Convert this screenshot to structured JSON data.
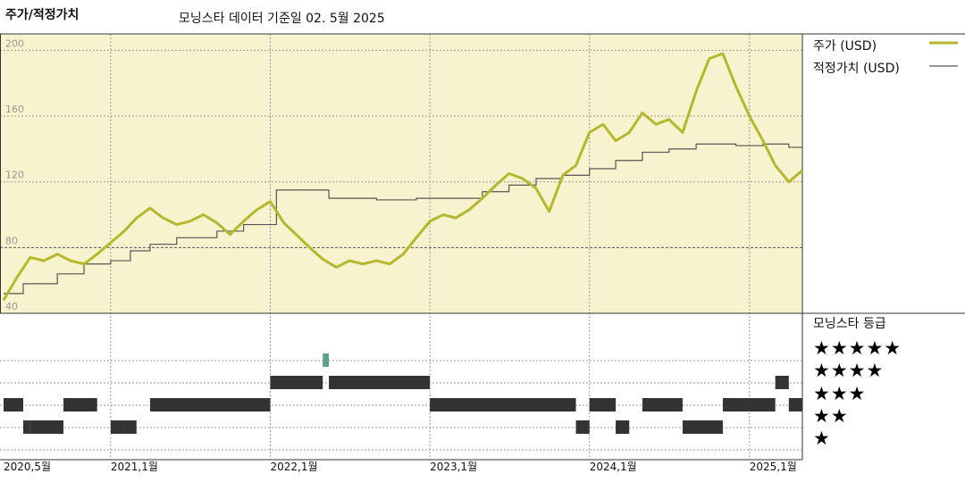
{
  "header": {
    "title": "주가/적정가치",
    "subtitle": "모닝스타 데이터 기준일 02. 5월 2025"
  },
  "legend": {
    "price_label": "주가 (USD)",
    "fair_label": "적정가치 (USD)",
    "price_color": "#b5b82c",
    "fair_color": "#555555",
    "rating_title": "모닝스타 등급",
    "stars": [
      "★★★★★",
      "★★★★",
      "★★★",
      "★★",
      "★"
    ]
  },
  "chart_data": [
    {
      "type": "line",
      "ylim": [
        40,
        210
      ],
      "yticks": [
        40,
        80,
        120,
        160,
        200
      ],
      "xlim": [
        "2020-05-01",
        "2025-05-02"
      ],
      "xtick_labels": [
        {
          "date": "2020-05-01",
          "label": "2020,5월"
        },
        {
          "date": "2021-01-01",
          "label": "2021,1월"
        },
        {
          "date": "2022-01-01",
          "label": "2022,1월"
        },
        {
          "date": "2023-01-01",
          "label": "2023,1월"
        },
        {
          "date": "2024-01-01",
          "label": "2024,1월"
        },
        {
          "date": "2025-01-01",
          "label": "2025,1월"
        }
      ],
      "series": [
        {
          "name": "주가 (USD)",
          "color": "#b5b82c",
          "points": [
            [
              "2020-05-01",
              48
            ],
            [
              "2020-06-01",
              62
            ],
            [
              "2020-07-01",
              74
            ],
            [
              "2020-08-01",
              72
            ],
            [
              "2020-09-01",
              76
            ],
            [
              "2020-10-01",
              72
            ],
            [
              "2020-11-01",
              70
            ],
            [
              "2020-12-01",
              76
            ],
            [
              "2021-01-01",
              83
            ],
            [
              "2021-02-01",
              90
            ],
            [
              "2021-03-01",
              98
            ],
            [
              "2021-04-01",
              104
            ],
            [
              "2021-05-01",
              98
            ],
            [
              "2021-06-01",
              94
            ],
            [
              "2021-07-01",
              96
            ],
            [
              "2021-08-01",
              100
            ],
            [
              "2021-09-01",
              95
            ],
            [
              "2021-10-01",
              88
            ],
            [
              "2021-11-01",
              96
            ],
            [
              "2021-12-01",
              103
            ],
            [
              "2022-01-01",
              108
            ],
            [
              "2022-02-01",
              95
            ],
            [
              "2022-03-01",
              88
            ],
            [
              "2022-04-01",
              80
            ],
            [
              "2022-05-01",
              73
            ],
            [
              "2022-06-01",
              68
            ],
            [
              "2022-07-01",
              72
            ],
            [
              "2022-08-01",
              70
            ],
            [
              "2022-09-01",
              72
            ],
            [
              "2022-10-01",
              70
            ],
            [
              "2022-11-01",
              76
            ],
            [
              "2022-12-01",
              86
            ],
            [
              "2023-01-01",
              96
            ],
            [
              "2023-02-01",
              100
            ],
            [
              "2023-03-01",
              98
            ],
            [
              "2023-04-01",
              103
            ],
            [
              "2023-05-01",
              110
            ],
            [
              "2023-06-01",
              118
            ],
            [
              "2023-07-01",
              125
            ],
            [
              "2023-08-01",
              122
            ],
            [
              "2023-09-01",
              116
            ],
            [
              "2023-10-01",
              102
            ],
            [
              "2023-11-01",
              124
            ],
            [
              "2023-12-01",
              130
            ],
            [
              "2024-01-01",
              150
            ],
            [
              "2024-02-01",
              155
            ],
            [
              "2024-03-01",
              145
            ],
            [
              "2024-04-01",
              150
            ],
            [
              "2024-05-01",
              162
            ],
            [
              "2024-06-01",
              155
            ],
            [
              "2024-07-01",
              158
            ],
            [
              "2024-08-01",
              150
            ],
            [
              "2024-09-01",
              175
            ],
            [
              "2024-10-01",
              195
            ],
            [
              "2024-11-01",
              198
            ],
            [
              "2024-12-01",
              178
            ],
            [
              "2025-01-01",
              160
            ],
            [
              "2025-02-01",
              145
            ],
            [
              "2025-03-01",
              130
            ],
            [
              "2025-04-01",
              120
            ],
            [
              "2025-05-02",
              127
            ]
          ]
        },
        {
          "name": "적정가치 (USD)",
          "color": "#555555",
          "points": [
            [
              "2020-05-01",
              52
            ],
            [
              "2020-06-15",
              58
            ],
            [
              "2020-09-01",
              64
            ],
            [
              "2020-11-01",
              70
            ],
            [
              "2021-01-01",
              72
            ],
            [
              "2021-02-15",
              78
            ],
            [
              "2021-04-01",
              82
            ],
            [
              "2021-06-01",
              86
            ],
            [
              "2021-09-01",
              90
            ],
            [
              "2021-11-01",
              94
            ],
            [
              "2022-01-15",
              115
            ],
            [
              "2022-05-15",
              110
            ],
            [
              "2022-09-01",
              109
            ],
            [
              "2022-12-01",
              110
            ],
            [
              "2023-05-01",
              114
            ],
            [
              "2023-07-01",
              118
            ],
            [
              "2023-09-01",
              122
            ],
            [
              "2023-11-01",
              124
            ],
            [
              "2024-01-01",
              128
            ],
            [
              "2024-03-01",
              133
            ],
            [
              "2024-05-01",
              138
            ],
            [
              "2024-07-01",
              140
            ],
            [
              "2024-09-01",
              143
            ],
            [
              "2024-12-01",
              142
            ],
            [
              "2025-02-01",
              143
            ],
            [
              "2025-04-01",
              141
            ],
            [
              "2025-05-02",
              140
            ]
          ]
        }
      ]
    },
    {
      "type": "table",
      "title": "모닝스타 등급",
      "ratings": [
        {
          "start": "2020-05-01",
          "end": "2020-06-15",
          "stars": 3
        },
        {
          "start": "2020-06-15",
          "end": "2020-07-01",
          "stars": 2
        },
        {
          "start": "2020-07-01",
          "end": "2020-09-15",
          "stars": 2
        },
        {
          "start": "2020-09-15",
          "end": "2020-12-01",
          "stars": 3
        },
        {
          "start": "2021-01-01",
          "end": "2021-02-01",
          "stars": 2
        },
        {
          "start": "2021-02-01",
          "end": "2021-03-01",
          "stars": 2
        },
        {
          "start": "2021-04-01",
          "end": "2022-01-01",
          "stars": 3
        },
        {
          "start": "2022-01-01",
          "end": "2022-05-01",
          "stars": 4
        },
        {
          "start": "2022-05-01",
          "end": "2022-05-15",
          "stars": 5
        },
        {
          "start": "2022-05-15",
          "end": "2023-01-01",
          "stars": 4
        },
        {
          "start": "2023-01-01",
          "end": "2023-12-01",
          "stars": 3
        },
        {
          "start": "2023-12-01",
          "end": "2024-01-01",
          "stars": 2
        },
        {
          "start": "2024-01-01",
          "end": "2024-03-01",
          "stars": 3
        },
        {
          "start": "2024-03-01",
          "end": "2024-04-01",
          "stars": 2
        },
        {
          "start": "2024-05-01",
          "end": "2024-08-01",
          "stars": 3
        },
        {
          "start": "2024-08-01",
          "end": "2024-11-01",
          "stars": 2
        },
        {
          "start": "2024-11-01",
          "end": "2025-03-01",
          "stars": 3
        },
        {
          "start": "2025-03-01",
          "end": "2025-04-01",
          "stars": 4
        },
        {
          "start": "2025-04-01",
          "end": "2025-05-02",
          "stars": 3
        }
      ]
    }
  ]
}
